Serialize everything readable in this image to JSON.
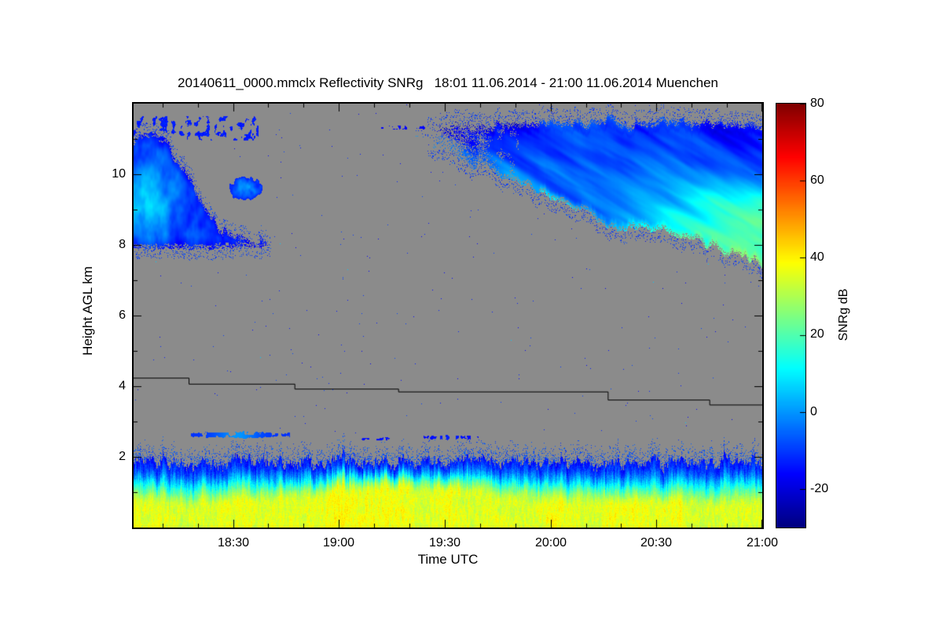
{
  "chart_data": {
    "type": "heatmap",
    "title": "20140611_0000.mmclx Reflectivity SNRg   18:01 11.06.2014 - 21:00 11.06.2014 Muenchen",
    "xlabel": "Time UTC",
    "ylabel": "Height AGL km",
    "x_range_hours": [
      18.03,
      21.0
    ],
    "y_range_km": [
      0,
      12
    ],
    "x_ticks": [
      {
        "value": 18.5,
        "label": "18:30"
      },
      {
        "value": 19.0,
        "label": "19:00"
      },
      {
        "value": 19.5,
        "label": "19:30"
      },
      {
        "value": 20.0,
        "label": "20:00"
      },
      {
        "value": 20.5,
        "label": "20:30"
      },
      {
        "value": 21.0,
        "label": "21:00"
      }
    ],
    "x_minor_step_hours": 0.1666667,
    "y_ticks": [
      2,
      4,
      6,
      8,
      10
    ],
    "y_minor_step_km": 1,
    "colorbar": {
      "label": "SNRg dB",
      "ticks": [
        80,
        60,
        40,
        20,
        0,
        -20
      ],
      "vmin": -30,
      "vmax": 80,
      "colormap": "jet"
    },
    "no_signal_color": "#8b8b8b",
    "axis_color": "#000000",
    "melting_line": {
      "color": "#000000",
      "steps_t_h_km": [
        [
          18.03,
          4.24
        ],
        [
          18.29,
          4.07
        ],
        [
          18.79,
          3.93
        ],
        [
          19.28,
          3.85
        ],
        [
          20.27,
          3.62
        ],
        [
          20.75,
          3.48
        ],
        [
          21.0,
          3.48
        ]
      ]
    },
    "features": {
      "boundary_layer": {
        "top_km": 1.85,
        "top_noise_km": 0.4,
        "core_db": 36,
        "top_db": -14,
        "core_frac_base": 0.3,
        "core_frac_peak": 0.55,
        "core_peak_t": 19.3,
        "core_peak_width_h": 0.5,
        "speck_km": 0.55
      },
      "cloud_left": {
        "keyframes": [
          [
            18.02,
            7.95,
            10.8
          ],
          [
            18.08,
            7.9,
            11.25
          ],
          [
            18.18,
            7.9,
            10.9
          ],
          [
            18.3,
            7.88,
            9.9
          ],
          [
            18.42,
            7.9,
            8.55
          ],
          [
            18.62,
            7.95,
            8.1
          ]
        ],
        "bright_t": 18.1,
        "bright_h": 9.2,
        "bright_rt": 0.13,
        "bright_rh": 1.1,
        "base_db": -11,
        "bright_db": 16,
        "edge_noise_km": 0.3
      },
      "cloud_left_patch": {
        "t": 18.56,
        "h": 9.6,
        "rt": 0.075,
        "rh": 0.33,
        "base_db": -13,
        "bright_db": 12
      },
      "cloud_left_fringe": {
        "t0": 18.03,
        "t1": 18.62,
        "h0": 10.95,
        "h1": 11.65,
        "threshold": 0.62,
        "db": -16
      },
      "cloud_right": {
        "keyframes": [
          [
            19.4,
            11.0,
            11.35
          ],
          [
            19.6,
            10.35,
            11.4
          ],
          [
            19.8,
            9.9,
            11.45
          ],
          [
            20.0,
            9.35,
            11.5
          ],
          [
            20.2,
            8.85,
            11.55
          ],
          [
            20.32,
            8.45,
            11.5
          ],
          [
            20.5,
            8.45,
            11.55
          ],
          [
            20.7,
            8.1,
            11.5
          ],
          [
            20.85,
            7.8,
            11.5
          ],
          [
            21.0,
            7.42,
            11.45
          ]
        ],
        "taper_t0": 19.42,
        "taper_t1": 19.85,
        "base_db": -13,
        "grad_db": 9,
        "bright_db": 27,
        "bright_h": 8.4,
        "bright_rh": 1.5,
        "bright_t0": 19.95,
        "bright_t1": 21.1,
        "streak_db": 11,
        "rim_db": 8,
        "edge_noise_km": 0.3
      },
      "thin_layers": [
        {
          "t0": 18.3,
          "t1": 18.77,
          "h": 2.62,
          "thick": 0.17,
          "db": -11,
          "bright_db": 11,
          "bright_t": 18.52,
          "bright_w": 0.1,
          "broken": 0.38
        },
        {
          "t0": 19.08,
          "t1": 19.25,
          "h": 2.5,
          "thick": 0.08,
          "db": -15,
          "bright_db": 0,
          "bright_t": 19.15,
          "bright_w": 0.05,
          "broken": 0.52
        },
        {
          "t0": 19.4,
          "t1": 19.66,
          "h": 2.55,
          "thick": 0.1,
          "db": -16,
          "bright_db": 3,
          "bright_t": 19.52,
          "bright_w": 0.08,
          "broken": 0.52
        },
        {
          "t0": 19.2,
          "t1": 19.42,
          "h": 11.32,
          "thick": 0.1,
          "db": -16,
          "bright_db": 0,
          "bright_t": 19.3,
          "bright_w": 0.06,
          "broken": 0.53
        }
      ],
      "specks": {
        "density": 0.0009,
        "db_min": -18,
        "db_spread": 10,
        "cyan_fraction": 0.05,
        "cyan_db": 6
      }
    }
  }
}
